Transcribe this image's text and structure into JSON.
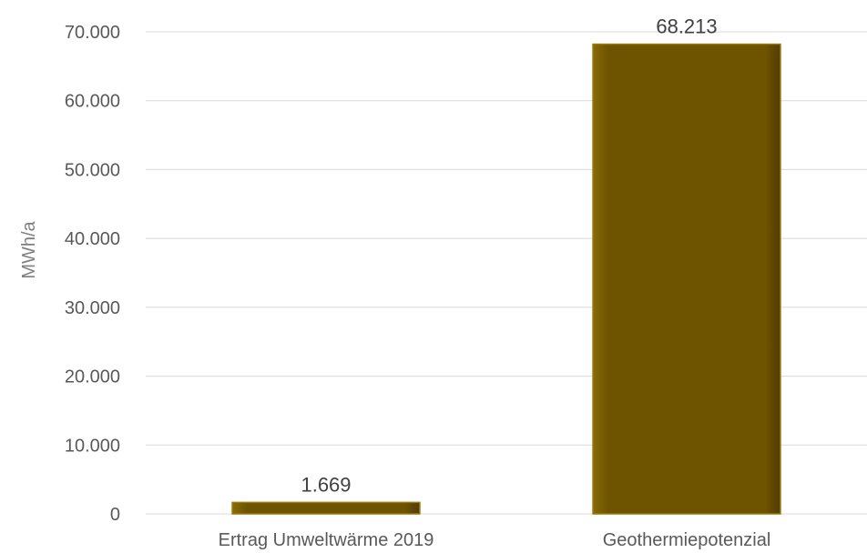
{
  "chart_data": {
    "type": "bar",
    "categories": [
      "Ertrag Umweltwärme 2019",
      "Geothermiepotenzial"
    ],
    "values": [
      1669,
      68213
    ],
    "data_labels": [
      "1.669",
      "68.213"
    ],
    "ylabel": "MWh/a",
    "ylim": [
      0,
      70000
    ],
    "yticks": [
      0,
      10000,
      20000,
      30000,
      40000,
      50000,
      60000,
      70000
    ],
    "ytick_labels": [
      "0",
      "10.000",
      "20.000",
      "30.000",
      "40.000",
      "50.000",
      "60.000",
      "70.000"
    ],
    "grid": true,
    "bar_color": "#6e5400",
    "bar_highlight": "#9a7a12"
  }
}
